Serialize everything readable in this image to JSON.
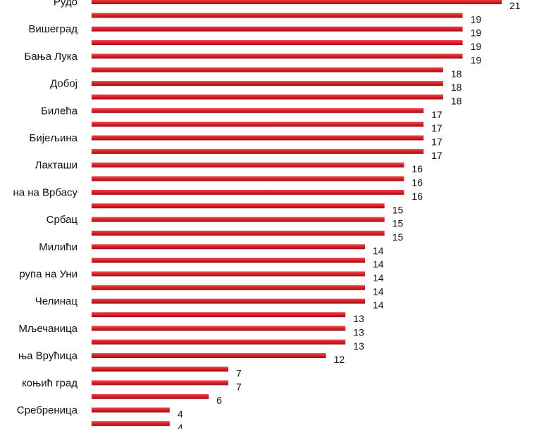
{
  "chart_data": {
    "type": "bar",
    "orientation": "horizontal",
    "title": "",
    "xlabel": "",
    "ylabel": "",
    "bar_color": "#d81f26",
    "xlim": [
      0,
      22
    ],
    "grid": false,
    "legend": "none",
    "categories": [
      "Рудо",
      "",
      "Вишеград",
      "",
      "Бања Лука",
      "",
      "Добој",
      "",
      "Билећа",
      "",
      "Бијељина",
      "",
      "Лакташи",
      "",
      "Кнежевo / Котор Вароша на Врбасу",
      "",
      "Србац",
      "",
      "Милићи",
      "",
      "Крупа на Уни",
      "",
      "Челинац",
      "",
      "Мљечаница",
      "",
      "Вишеградска Бања Врућица",
      "",
      "Козарска Дубица / Приједор / Оштра Лука / Новокнежевић / Кокoњић град",
      "",
      "Сребреница",
      ""
    ],
    "category_labels_visible": [
      "Рудо",
      "Вишеград",
      "Бања Лука",
      "Добој",
      "Билећа",
      "Бијељина",
      "Лакташи",
      "на на Врбасу",
      "Србац",
      "Милићи",
      "рупа на Уни",
      "Челинац",
      "Мљечаница",
      "ња Врућица",
      "коњић град",
      "Сребреница"
    ],
    "values": [
      21,
      19,
      19,
      19,
      19,
      18,
      18,
      18,
      17,
      17,
      17,
      17,
      16,
      16,
      16,
      15,
      15,
      15,
      14,
      14,
      14,
      14,
      14,
      13,
      13,
      13,
      12,
      7,
      7,
      6,
      4,
      4
    ]
  }
}
